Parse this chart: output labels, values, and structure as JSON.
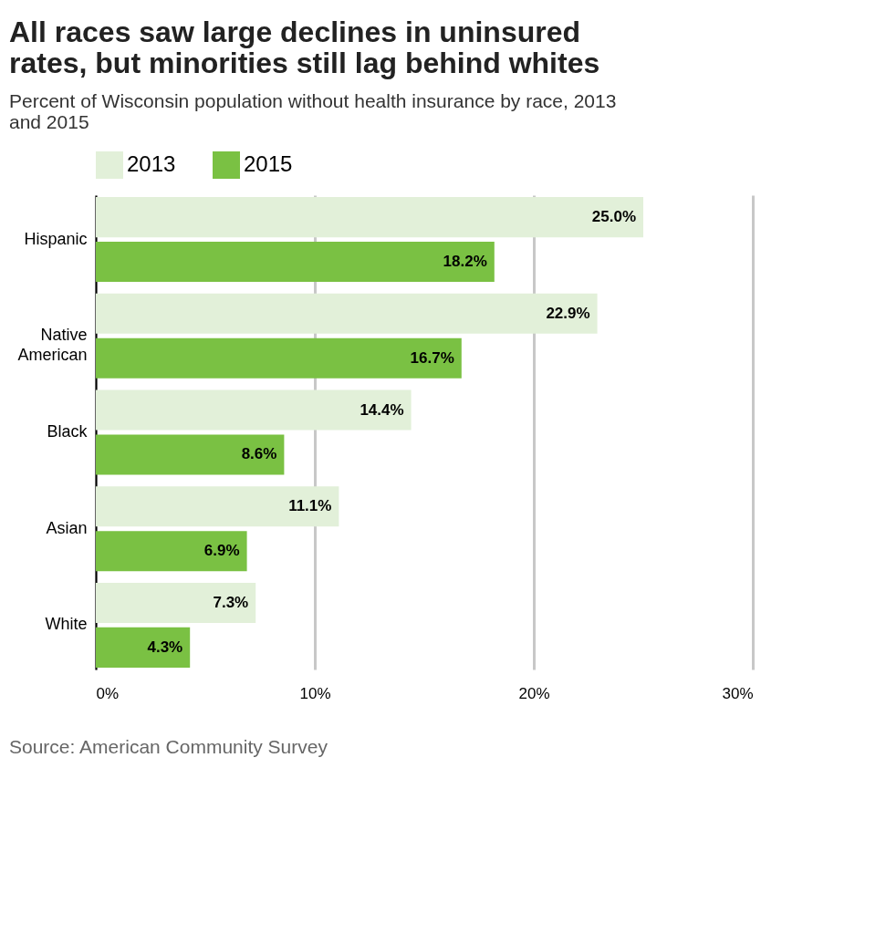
{
  "chart_data": {
    "type": "bar",
    "orientation": "horizontal",
    "title": "All races saw large declines in uninsured rates, but minorities still lag behind whites",
    "subtitle": "Percent of Wisconsin population without health insurance by race, 2013 and 2015",
    "categories": [
      "Hispanic",
      "Native American",
      "Black",
      "Asian",
      "White"
    ],
    "series": [
      {
        "name": "2013",
        "color": "#e2f0d9",
        "values": [
          25.0,
          22.9,
          14.4,
          11.1,
          7.3
        ],
        "value_labels": [
          "25.0%",
          "22.9%",
          "14.4%",
          "11.1%",
          "7.3%"
        ]
      },
      {
        "name": "2015",
        "color": "#7ac143",
        "values": [
          18.2,
          16.7,
          8.6,
          6.9,
          4.3
        ],
        "value_labels": [
          "18.2%",
          "16.7%",
          "8.6%",
          "6.9%",
          "4.3%"
        ]
      }
    ],
    "xlim": [
      0,
      30
    ],
    "xticks": [
      {
        "value": 0,
        "label": "0%"
      },
      {
        "value": 10,
        "label": "10%"
      },
      {
        "value": 20,
        "label": "20%"
      },
      {
        "value": 30,
        "label": "30%"
      }
    ],
    "grid": "x",
    "legend": "top",
    "annotations": [
      "Source: American Community Survey"
    ]
  }
}
